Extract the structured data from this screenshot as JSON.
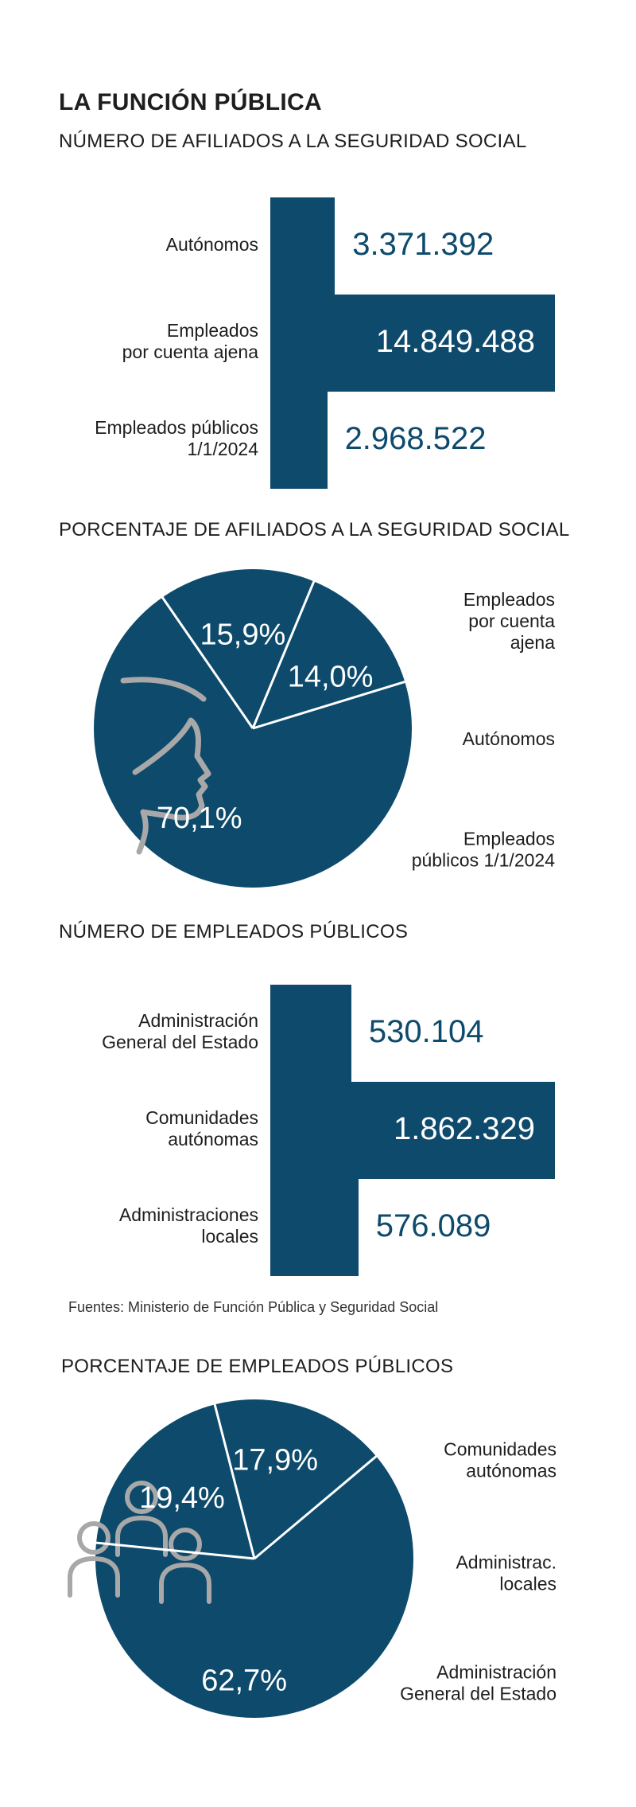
{
  "title": "LA FUNCIÓN PÚBLICA",
  "colors": {
    "navy": "#0d4a6c",
    "icon_gray": "#a8a8a8",
    "text": "#1e1e1e"
  },
  "source": "Fuentes: Ministerio de Función Pública y Seguridad Social",
  "chart_data": [
    {
      "type": "bar",
      "title": "NÚMERO DE AFILIADOS A LA SEGURIDAD SOCIAL",
      "categories": [
        "Autónomos",
        "Empleados\npor cuenta ajena",
        "Empleados públicos\n1/1/2024"
      ],
      "values": [
        3371392,
        14849488,
        2968522
      ],
      "value_labels": [
        "3.371.392",
        "14.849.488",
        "2.968.522"
      ]
    },
    {
      "type": "pie",
      "title": "PORCENTAJE DE AFILIADOS A LA SEGURIDAD SOCIAL",
      "slices": [
        {
          "label": "Empleados\npor cuenta\najena",
          "value": 70.1,
          "value_label": "70,1%"
        },
        {
          "label": "Autónomos",
          "value": 15.9,
          "value_label": "15,9%"
        },
        {
          "label": "Empleados\npúblicos 1/1/2024",
          "value": 14.0,
          "value_label": "14,0%"
        }
      ],
      "icon": "person-profile-icon"
    },
    {
      "type": "bar",
      "title": "NÚMERO DE  EMPLEADOS PÚBLICOS",
      "categories": [
        "Administración\nGeneral del Estado",
        "Comunidades\nautónomas",
        "Administraciones\nlocales"
      ],
      "values": [
        530104,
        1862329,
        576089
      ],
      "value_labels": [
        "530.104",
        "1.862.329",
        "576.089"
      ]
    },
    {
      "type": "pie",
      "title": "PORCENTAJE DE EMPLEADOS PÚBLICOS",
      "slices": [
        {
          "label": "Comunidades\nautónomas",
          "value": 62.7,
          "value_label": "62,7%"
        },
        {
          "label": "Administrac.\nlocales",
          "value": 19.4,
          "value_label": "19,4%"
        },
        {
          "label": "Administración\nGeneral del Estado",
          "value": 17.9,
          "value_label": "17,9%"
        }
      ],
      "icon": "people-group-icon"
    }
  ]
}
